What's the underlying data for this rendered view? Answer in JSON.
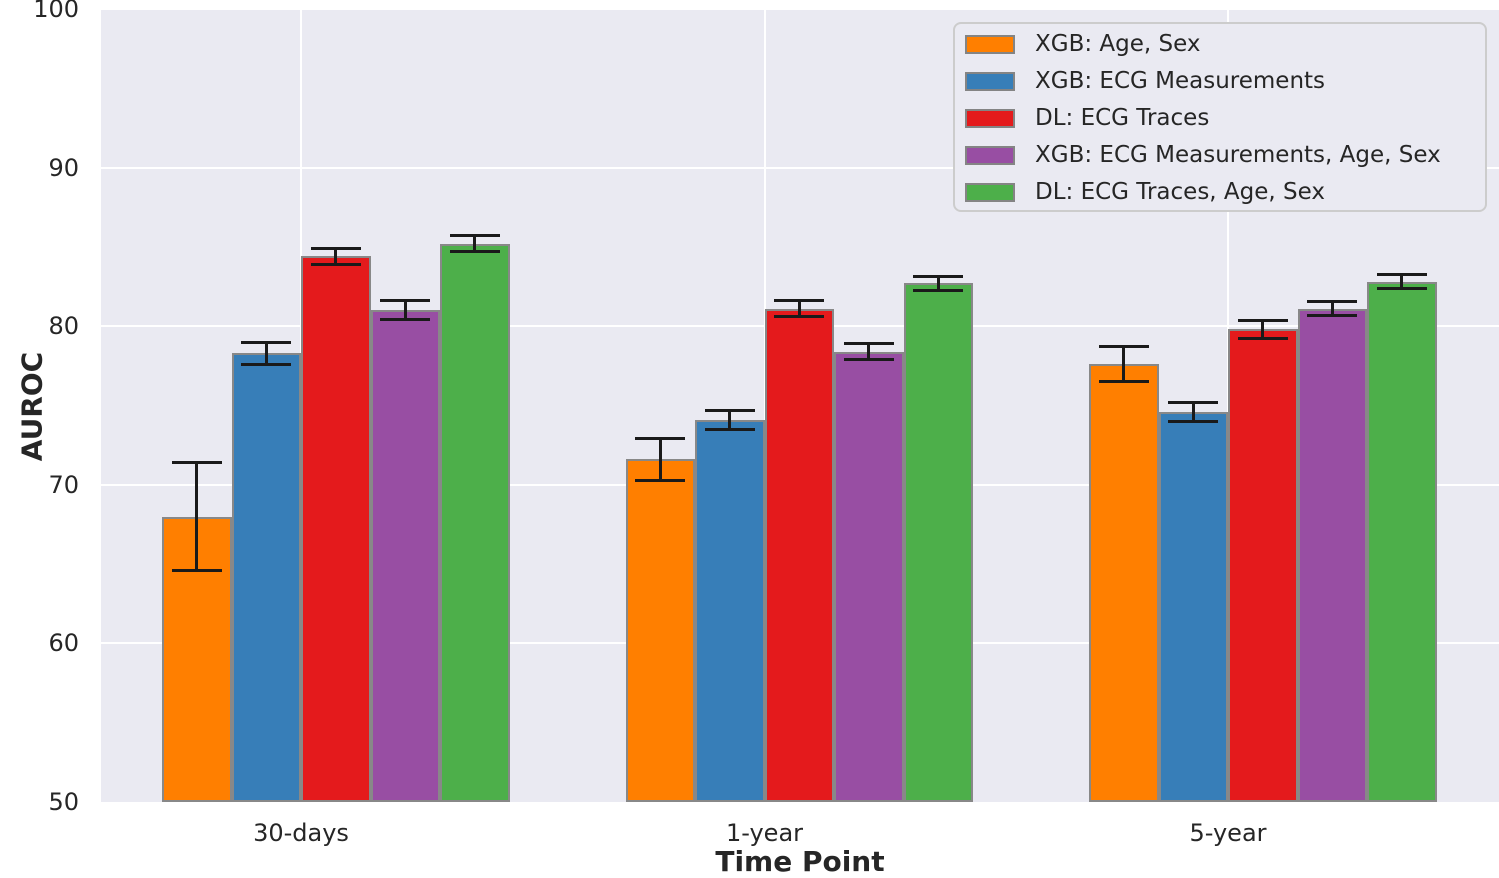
{
  "chart_data": {
    "type": "bar",
    "title": "",
    "xlabel": "Time Point",
    "ylabel": "AUROC",
    "ylim": [
      50,
      100
    ],
    "yticks": [
      50,
      60,
      70,
      80,
      90,
      100
    ],
    "categories": [
      "30-days",
      "1-year",
      "5-year"
    ],
    "series": [
      {
        "name": "XGB: Age, Sex",
        "color": "#ff7f00",
        "values": [
          68.0,
          71.6,
          77.6
        ],
        "errors": [
          3.4,
          1.3,
          1.1
        ]
      },
      {
        "name": "XGB: ECG Measurements",
        "color": "#377eb8",
        "values": [
          78.3,
          74.1,
          74.6
        ],
        "errors": [
          0.7,
          0.6,
          0.6
        ]
      },
      {
        "name": "DL: ECG Traces",
        "color": "#e41a1c",
        "values": [
          84.4,
          81.1,
          79.8
        ],
        "errors": [
          0.5,
          0.5,
          0.55
        ]
      },
      {
        "name": "XGB: ECG Measurements, Age, Sex",
        "color": "#984ea3",
        "values": [
          81.0,
          78.4,
          81.1
        ],
        "errors": [
          0.6,
          0.5,
          0.45
        ]
      },
      {
        "name": "DL: ECG Traces, Age, Sex",
        "color": "#4daf4a",
        "values": [
          85.2,
          82.7,
          82.8
        ],
        "errors": [
          0.5,
          0.45,
          0.45
        ]
      }
    ],
    "legend_position": "upper right",
    "grid": true,
    "background_color": "#eaeaf2",
    "gridline_color": "#ffffff",
    "bar_edge_color": "#888888",
    "errorbar_color": "#1a1a1a"
  }
}
